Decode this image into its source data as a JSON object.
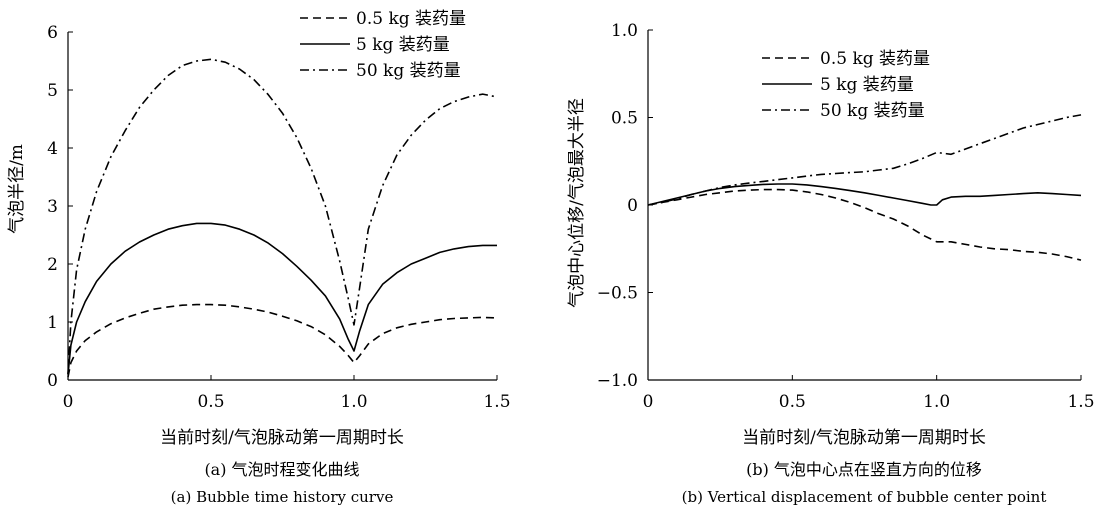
{
  "chart_data": [
    {
      "type": "line",
      "caption_zh": "(a) 气泡时程变化曲线",
      "caption_en": "(a) Bubble time history curve",
      "xlabel": "当前时刻/气泡脉动第一周期时长",
      "ylabel": "气泡半径/m",
      "xlim": [
        0,
        1.5
      ],
      "ylim": [
        0,
        6
      ],
      "xticks": [
        "0",
        "0.5",
        "1.0",
        "1.5"
      ],
      "yticks": [
        "0",
        "1",
        "2",
        "3",
        "4",
        "5",
        "6"
      ],
      "legend_position": "top-right",
      "series": [
        {
          "name": "0.5 kg 装药量",
          "style": "dashed",
          "x": [
            0,
            0.01,
            0.03,
            0.06,
            0.1,
            0.15,
            0.2,
            0.25,
            0.3,
            0.35,
            0.4,
            0.45,
            0.5,
            0.55,
            0.6,
            0.65,
            0.7,
            0.75,
            0.8,
            0.85,
            0.9,
            0.95,
            0.98,
            1.0,
            1.02,
            1.05,
            1.1,
            1.15,
            1.2,
            1.25,
            1.3,
            1.35,
            1.4,
            1.45,
            1.5
          ],
          "values": [
            0.05,
            0.3,
            0.5,
            0.68,
            0.83,
            0.97,
            1.07,
            1.15,
            1.22,
            1.26,
            1.29,
            1.3,
            1.3,
            1.29,
            1.26,
            1.22,
            1.17,
            1.1,
            1.02,
            0.92,
            0.78,
            0.58,
            0.42,
            0.3,
            0.42,
            0.62,
            0.8,
            0.9,
            0.96,
            1.0,
            1.04,
            1.06,
            1.07,
            1.08,
            1.07
          ]
        },
        {
          "name": "5 kg 装药量",
          "style": "solid",
          "x": [
            0,
            0.01,
            0.03,
            0.06,
            0.1,
            0.15,
            0.2,
            0.25,
            0.3,
            0.35,
            0.4,
            0.45,
            0.5,
            0.55,
            0.6,
            0.65,
            0.7,
            0.75,
            0.8,
            0.85,
            0.9,
            0.95,
            0.98,
            1.0,
            1.02,
            1.05,
            1.1,
            1.15,
            1.2,
            1.25,
            1.3,
            1.35,
            1.4,
            1.45,
            1.5
          ],
          "values": [
            0.1,
            0.6,
            1.0,
            1.35,
            1.7,
            2.0,
            2.22,
            2.38,
            2.5,
            2.6,
            2.66,
            2.7,
            2.7,
            2.67,
            2.6,
            2.5,
            2.36,
            2.18,
            1.96,
            1.72,
            1.45,
            1.05,
            0.7,
            0.5,
            0.85,
            1.3,
            1.65,
            1.85,
            2.0,
            2.1,
            2.2,
            2.26,
            2.3,
            2.32,
            2.32
          ]
        },
        {
          "name": "50 kg 装药量",
          "style": "dashdot",
          "x": [
            0,
            0.01,
            0.03,
            0.06,
            0.1,
            0.15,
            0.2,
            0.25,
            0.3,
            0.35,
            0.4,
            0.45,
            0.5,
            0.55,
            0.6,
            0.65,
            0.7,
            0.75,
            0.8,
            0.85,
            0.9,
            0.95,
            0.98,
            1.0,
            1.02,
            1.05,
            1.1,
            1.15,
            1.2,
            1.25,
            1.3,
            1.35,
            1.4,
            1.45,
            1.5
          ],
          "values": [
            0.1,
            1.0,
            1.9,
            2.6,
            3.25,
            3.85,
            4.3,
            4.7,
            5.0,
            5.25,
            5.42,
            5.5,
            5.53,
            5.48,
            5.36,
            5.18,
            4.92,
            4.6,
            4.18,
            3.65,
            3.0,
            2.05,
            1.4,
            0.95,
            1.6,
            2.6,
            3.35,
            3.88,
            4.22,
            4.48,
            4.68,
            4.8,
            4.88,
            4.93,
            4.88
          ]
        }
      ]
    },
    {
      "type": "line",
      "caption_zh": "(b) 气泡中心点在竖直方向的位移",
      "caption_en": "(b) Vertical displacement of bubble center point",
      "xlabel": "当前时刻/气泡脉动第一周期时长",
      "ylabel": "气泡中心位移/气泡最大半径",
      "xlim": [
        0,
        1.5
      ],
      "ylim": [
        -1.0,
        1.0
      ],
      "xticks": [
        "0",
        "0.5",
        "1.0",
        "1.5"
      ],
      "yticks": [
        "−1.0",
        "−0.5",
        "0",
        "0.5",
        "1.0"
      ],
      "legend_position": "top-left",
      "series": [
        {
          "name": "0.5 kg 装药量",
          "style": "dashed",
          "x": [
            0,
            0.05,
            0.1,
            0.15,
            0.2,
            0.25,
            0.3,
            0.35,
            0.4,
            0.45,
            0.5,
            0.55,
            0.6,
            0.65,
            0.7,
            0.75,
            0.8,
            0.85,
            0.9,
            0.95,
            1.0,
            1.05,
            1.1,
            1.15,
            1.2,
            1.25,
            1.3,
            1.35,
            1.4,
            1.45,
            1.5
          ],
          "values": [
            0,
            0.015,
            0.03,
            0.045,
            0.06,
            0.07,
            0.08,
            0.085,
            0.088,
            0.088,
            0.085,
            0.075,
            0.06,
            0.04,
            0.015,
            -0.015,
            -0.05,
            -0.08,
            -0.12,
            -0.17,
            -0.21,
            -0.21,
            -0.225,
            -0.24,
            -0.25,
            -0.255,
            -0.265,
            -0.27,
            -0.28,
            -0.295,
            -0.315
          ]
        },
        {
          "name": "5 kg 装药量",
          "style": "solid",
          "x": [
            0,
            0.05,
            0.1,
            0.15,
            0.2,
            0.25,
            0.3,
            0.35,
            0.4,
            0.45,
            0.5,
            0.55,
            0.6,
            0.65,
            0.7,
            0.75,
            0.8,
            0.85,
            0.9,
            0.95,
            0.98,
            1.0,
            1.02,
            1.05,
            1.1,
            1.15,
            1.2,
            1.25,
            1.3,
            1.35,
            1.4,
            1.45,
            1.5
          ],
          "values": [
            0,
            0.02,
            0.04,
            0.06,
            0.08,
            0.095,
            0.105,
            0.112,
            0.118,
            0.12,
            0.12,
            0.115,
            0.105,
            0.095,
            0.082,
            0.07,
            0.055,
            0.04,
            0.025,
            0.01,
            0.0,
            0.0,
            0.03,
            0.045,
            0.05,
            0.05,
            0.055,
            0.06,
            0.065,
            0.07,
            0.065,
            0.06,
            0.055
          ]
        },
        {
          "name": "50 kg 装药量",
          "style": "dashdot",
          "x": [
            0,
            0.05,
            0.1,
            0.15,
            0.2,
            0.25,
            0.3,
            0.35,
            0.4,
            0.45,
            0.5,
            0.55,
            0.6,
            0.65,
            0.7,
            0.75,
            0.8,
            0.85,
            0.9,
            0.95,
            1.0,
            1.05,
            1.1,
            1.15,
            1.2,
            1.25,
            1.3,
            1.35,
            1.4,
            1.45,
            1.5
          ],
          "values": [
            0,
            0.015,
            0.035,
            0.06,
            0.08,
            0.1,
            0.115,
            0.125,
            0.135,
            0.145,
            0.155,
            0.165,
            0.175,
            0.18,
            0.185,
            0.19,
            0.2,
            0.21,
            0.235,
            0.265,
            0.3,
            0.29,
            0.32,
            0.35,
            0.38,
            0.41,
            0.44,
            0.46,
            0.48,
            0.5,
            0.515
          ]
        }
      ]
    }
  ]
}
